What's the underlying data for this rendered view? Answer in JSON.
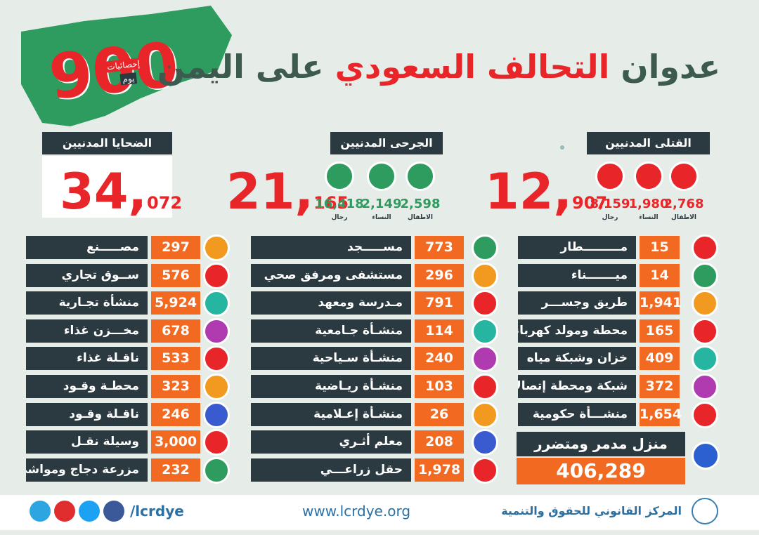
{
  "title": {
    "part1": "عدوان",
    "part2": "التحالف السعودي",
    "part3": "على اليمن"
  },
  "badge": {
    "number": "900",
    "label1": "إحصائيات",
    "label2": "يوم"
  },
  "summary": [
    {
      "label": "القتلى المدنيين",
      "total_major": "12,",
      "total_minor": "907",
      "breakdown": [
        {
          "value": "2,768",
          "label": "الاطفال"
        },
        {
          "value": "1,980",
          "label": "النساء"
        },
        {
          "value": "8,159",
          "label": "رجال"
        }
      ]
    },
    {
      "label": "الجرحى المدنيين",
      "total_major": "21,",
      "total_minor": "165",
      "breakdown": [
        {
          "value": "2,598",
          "label": "الاطفال"
        },
        {
          "value": "2,149",
          "label": "النساء"
        },
        {
          "value": "16,418",
          "label": "رجال"
        }
      ]
    },
    {
      "label": "الضحايا المدنيين",
      "total_major": "34,",
      "total_minor": "072",
      "breakdown": []
    }
  ],
  "facilities": {
    "columns": [
      [
        {
          "label": "مـــــــــطار",
          "value": "15"
        },
        {
          "label": "ميـــــــناء",
          "value": "14"
        },
        {
          "label": "طريق وجســـر",
          "value": "1,941"
        },
        {
          "label": "محطة ومولد كهرباء",
          "value": "165"
        },
        {
          "label": "خزان وشبكة مياه",
          "value": "409"
        },
        {
          "label": "شبكة ومحطة إتصالات",
          "value": "372"
        },
        {
          "label": "منشـــأة حكومية",
          "value": "1,654"
        }
      ],
      [
        {
          "label": "مســـــجد",
          "value": "773"
        },
        {
          "label": "مستشفى ومرفق صحي",
          "value": "296"
        },
        {
          "label": "مـدرسة ومعهد",
          "value": "791"
        },
        {
          "label": "منشـأة جـامعية",
          "value": "114"
        },
        {
          "label": "منشـأة سـياحية",
          "value": "240"
        },
        {
          "label": "منشـأة ريـاضية",
          "value": "103"
        },
        {
          "label": "منشـأة إعـلامية",
          "value": "26"
        },
        {
          "label": "معلم أثـري",
          "value": "208"
        },
        {
          "label": "حقل زراعـــي",
          "value": "1,978"
        }
      ],
      [
        {
          "label": "مصـــــنع",
          "value": "297"
        },
        {
          "label": "ســوق تجاري",
          "value": "576"
        },
        {
          "label": "منشأة تجـارية",
          "value": "5,924"
        },
        {
          "label": "مخـــزن غذاء",
          "value": "678"
        },
        {
          "label": "ناقـلة غذاء",
          "value": "533"
        },
        {
          "label": "محطـة وقـود",
          "value": "323"
        },
        {
          "label": "ناقـلة وقـود",
          "value": "246"
        },
        {
          "label": "وسيلة نقـل",
          "value": "3,000"
        },
        {
          "label": "مزرعة دجاج ومواشي",
          "value": "232"
        }
      ]
    ]
  },
  "houses": {
    "label": "منزل مدمر ومتضرر",
    "value": "406,289"
  },
  "footer": {
    "handle": "/lcrdye",
    "website": "www.lcrdye.org",
    "org": "المركز القانوني للحقوق والتنمية"
  }
}
